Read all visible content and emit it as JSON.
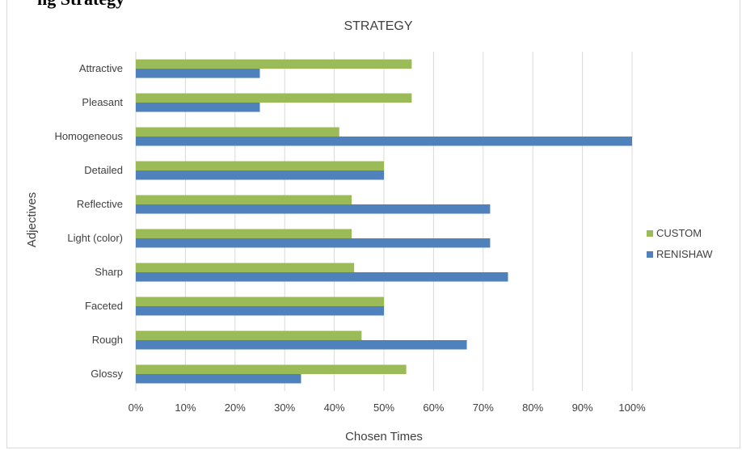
{
  "page": {
    "cut_heading": "ng Strategy"
  },
  "chart_data": {
    "type": "bar",
    "orientation": "horizontal",
    "title": "STRATEGY",
    "xlabel": "Chosen Times",
    "ylabel": "Adjectives",
    "xlim": [
      0,
      1
    ],
    "xticks": [
      "0%",
      "10%",
      "20%",
      "30%",
      "40%",
      "50%",
      "60%",
      "70%",
      "80%",
      "90%",
      "100%"
    ],
    "grid": true,
    "legend_position": "right",
    "categories": [
      "Attractive",
      "Pleasant",
      "Homogeneous",
      "Detailed",
      "Reflective",
      "Light (color)",
      "Sharp",
      "Faceted",
      "Rough",
      "Glossy"
    ],
    "series": [
      {
        "name": "CUSTOM",
        "color": "#9bbb59",
        "values": [
          0.556,
          0.556,
          0.41,
          0.5,
          0.435,
          0.435,
          0.44,
          0.5,
          0.455,
          0.545
        ]
      },
      {
        "name": "RENISHAW",
        "color": "#4f81bd",
        "values": [
          0.25,
          0.25,
          1.0,
          0.5,
          0.714,
          0.714,
          0.75,
          0.5,
          0.667,
          0.333
        ]
      }
    ]
  }
}
